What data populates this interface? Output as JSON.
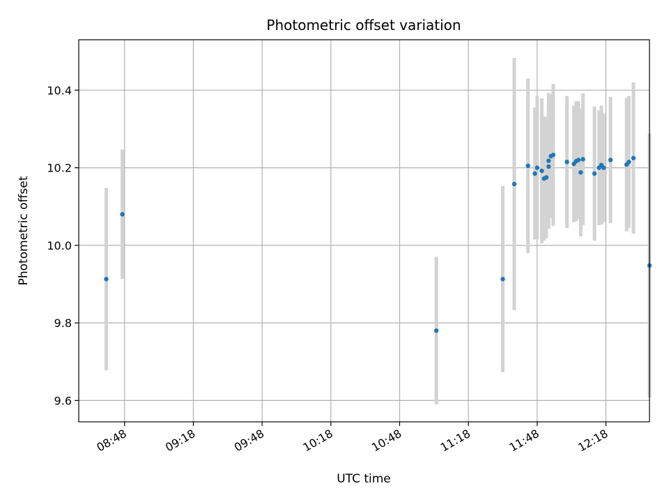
{
  "chart_data": {
    "type": "scatter",
    "title": "Photometric offset variation",
    "xlabel": "UTC time",
    "ylabel": "Photometric offset",
    "x_ticks": [
      "08:48",
      "09:18",
      "09:48",
      "10:18",
      "10:48",
      "11:18",
      "11:48",
      "12:18"
    ],
    "x_range": [
      "08:28",
      "12:37"
    ],
    "y_ticks": [
      "9.6",
      "9.8",
      "10.0",
      "10.2",
      "10.4"
    ],
    "ylim": [
      9.545,
      10.53
    ],
    "grid": true,
    "colors": {
      "point": "#1f77b4",
      "errorbar": "#d3d3d3",
      "grid": "#b0b0b0"
    },
    "series": [
      {
        "points": [
          {
            "x": "08:40",
            "y": 9.913,
            "err": 0.235
          },
          {
            "x": "08:47",
            "y": 10.08,
            "err": 0.167
          },
          {
            "x": "11:04",
            "y": 9.78,
            "err": 0.19
          },
          {
            "x": "11:33",
            "y": 9.913,
            "err": 0.24
          },
          {
            "x": "11:38",
            "y": 10.158,
            "err": 0.325
          },
          {
            "x": "11:44",
            "y": 10.205,
            "err": 0.225
          },
          {
            "x": "11:47",
            "y": 10.185,
            "err": 0.17
          },
          {
            "x": "11:48",
            "y": 10.2,
            "err": 0.185
          },
          {
            "x": "11:50",
            "y": 10.192,
            "err": 0.187
          },
          {
            "x": "11:51",
            "y": 10.172,
            "err": 0.16
          },
          {
            "x": "11:52",
            "y": 10.175,
            "err": 0.157
          },
          {
            "x": "11:53",
            "y": 10.203,
            "err": 0.16
          },
          {
            "x": "11:53",
            "y": 10.218,
            "err": 0.175
          },
          {
            "x": "11:54",
            "y": 10.23,
            "err": 0.16
          },
          {
            "x": "11:55",
            "y": 10.233,
            "err": 0.183
          },
          {
            "x": "12:01",
            "y": 10.215,
            "err": 0.17
          },
          {
            "x": "12:04",
            "y": 10.21,
            "err": 0.15
          },
          {
            "x": "12:05",
            "y": 10.217,
            "err": 0.155
          },
          {
            "x": "12:06",
            "y": 10.22,
            "err": 0.152
          },
          {
            "x": "12:07",
            "y": 10.188,
            "err": 0.165
          },
          {
            "x": "12:08",
            "y": 10.222,
            "err": 0.17
          },
          {
            "x": "12:13",
            "y": 10.185,
            "err": 0.173
          },
          {
            "x": "12:15",
            "y": 10.2,
            "err": 0.148
          },
          {
            "x": "12:16",
            "y": 10.207,
            "err": 0.153
          },
          {
            "x": "12:17",
            "y": 10.2,
            "err": 0.14
          },
          {
            "x": "12:20",
            "y": 10.22,
            "err": 0.163
          },
          {
            "x": "12:27",
            "y": 10.208,
            "err": 0.172
          },
          {
            "x": "12:28",
            "y": 10.215,
            "err": 0.17
          },
          {
            "x": "12:30",
            "y": 10.225,
            "err": 0.195
          },
          {
            "x": "12:37",
            "y": 9.948,
            "err": 0.34
          }
        ]
      }
    ]
  }
}
